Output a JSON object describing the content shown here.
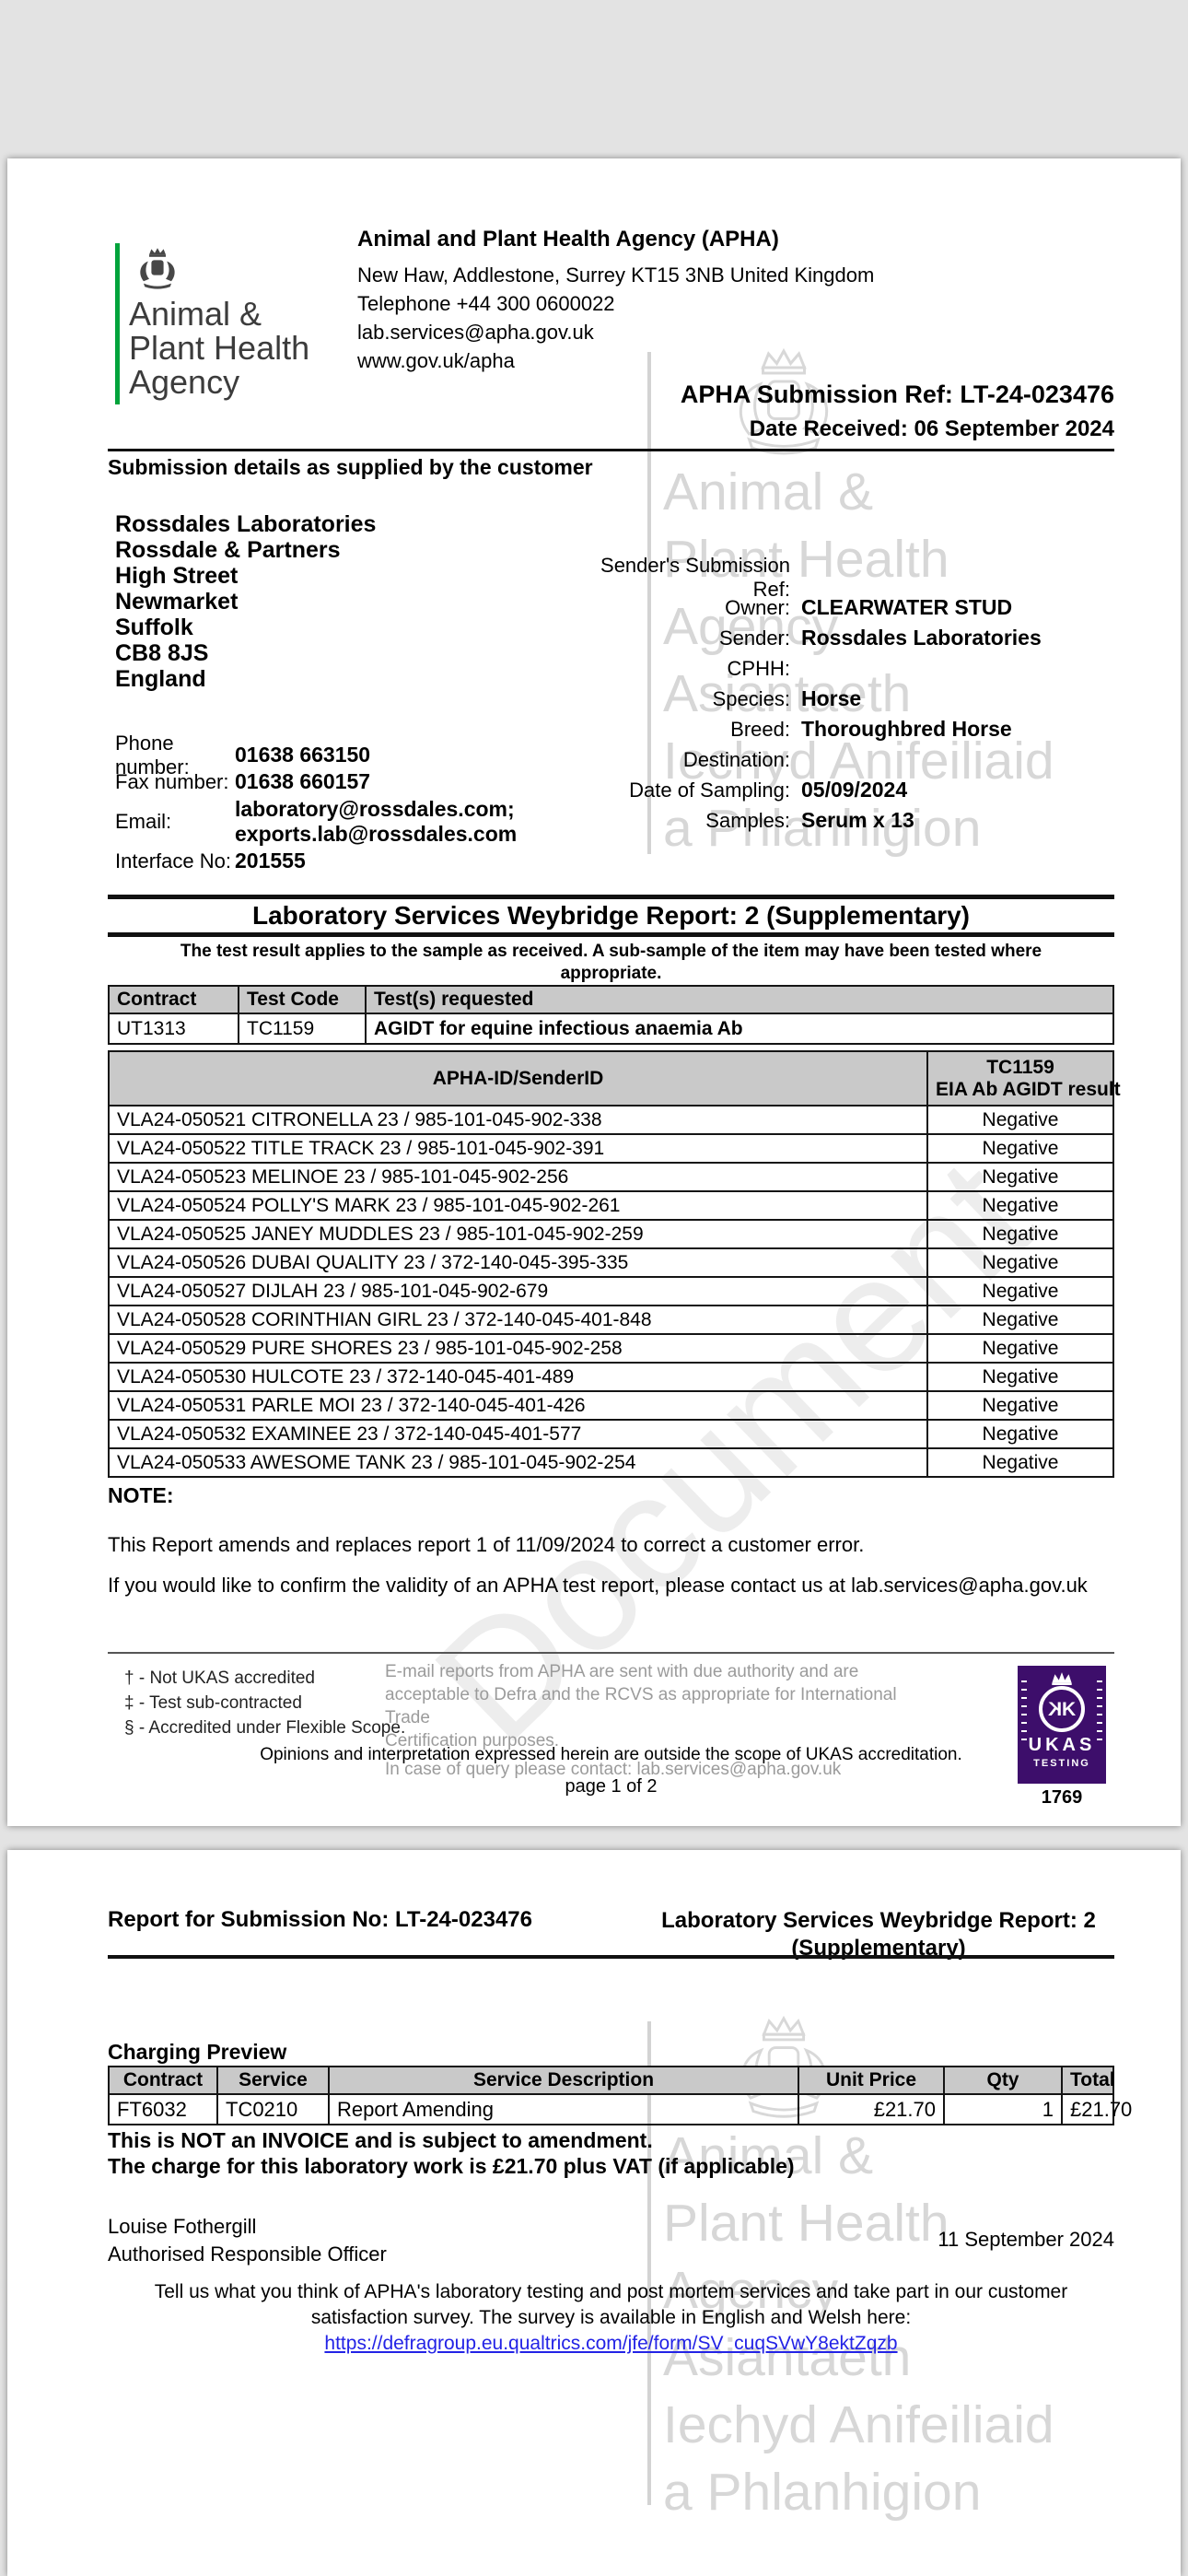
{
  "colors": {
    "accent_green": "#00a33b",
    "ukas_purple": "#3d0e6b",
    "link_blue": "#2323e6",
    "table_header_grey": "#c9c9c9"
  },
  "watermark": {
    "lines": [
      "Animal &",
      "Plant Health",
      "Agency",
      "Asiantaeth",
      "Iechyd Anifeiliaid",
      "a Phlanhigion"
    ],
    "diagonal": "Document"
  },
  "page1": {
    "logo": {
      "lines": [
        "Animal &",
        "Plant Health",
        "Agency"
      ]
    },
    "agency_header": {
      "title": "Animal and Plant Health Agency (APHA)",
      "lines": [
        "New Haw, Addlestone, Surrey KT15 3NB United Kingdom",
        "Telephone +44 300 0600022",
        "lab.services@apha.gov.uk",
        "www.gov.uk/apha"
      ]
    },
    "submission_ref": "APHA Submission Ref: LT-24-023476",
    "date_received": "Date Received: 06 September 2024",
    "section_title": "Submission details as supplied by the customer",
    "customer_address": [
      "Rossdales Laboratories",
      "Rossdale & Partners",
      "High Street",
      "Newmarket",
      "Suffolk",
      "CB8 8JS",
      "England"
    ],
    "contact_rows": [
      {
        "label": "Phone number:",
        "value": "01638 663150"
      },
      {
        "label": "Fax number:",
        "value": "01638 660157"
      },
      {
        "label": "Email:",
        "value": "laboratory@rossdales.com;\nexports.lab@rossdales.com"
      },
      {
        "label": "Interface No:",
        "value": "201555"
      }
    ],
    "details_rows": [
      {
        "label": "Sender's Submission Ref:",
        "value": ""
      },
      {
        "label": "Owner:",
        "value": "CLEARWATER STUD"
      },
      {
        "label": "Sender:",
        "value": "Rossdales Laboratories"
      },
      {
        "label": "CPHH:",
        "value": ""
      },
      {
        "label": "Species:",
        "value": "Horse"
      },
      {
        "label": "Breed:",
        "value": "Thoroughbred Horse"
      },
      {
        "label": "Destination:",
        "value": ""
      },
      {
        "label": "Date of Sampling:",
        "value": "05/09/2024"
      },
      {
        "label": "Samples:",
        "value": "Serum x 13"
      }
    ],
    "report_title": "Laboratory Services Weybridge Report: 2 (Supplementary)",
    "disclaimer": [
      "The test result applies to the sample as received. A sub-sample of the item may have been tested where",
      "appropriate."
    ],
    "tests_table": {
      "headers": [
        "Contract",
        "Test Code",
        "Test(s) requested"
      ],
      "row": [
        "UT1313",
        "TC1159",
        "AGIDT for equine infectious anaemia Ab"
      ]
    },
    "results_table": {
      "col1_header": "APHA-ID/SenderID",
      "col2_header": [
        "TC1159",
        "EIA Ab AGIDT result"
      ],
      "rows": [
        {
          "id": "VLA24-050521 CITRONELLA 23 / 985-101-045-902-338",
          "result": "Negative"
        },
        {
          "id": "VLA24-050522 TITLE TRACK 23 / 985-101-045-902-391",
          "result": "Negative"
        },
        {
          "id": "VLA24-050523 MELINOE 23 / 985-101-045-902-256",
          "result": "Negative"
        },
        {
          "id": "VLA24-050524 POLLY'S MARK 23 / 985-101-045-902-261",
          "result": "Negative"
        },
        {
          "id": "VLA24-050525 JANEY MUDDLES 23 / 985-101-045-902-259",
          "result": "Negative"
        },
        {
          "id": "VLA24-050526 DUBAI QUALITY 23 / 372-140-045-395-335",
          "result": "Negative"
        },
        {
          "id": "VLA24-050527 DIJLAH 23 / 985-101-045-902-679",
          "result": "Negative"
        },
        {
          "id": "VLA24-050528 CORINTHIAN GIRL 23 / 372-140-045-401-848",
          "result": "Negative"
        },
        {
          "id": "VLA24-050529 PURE SHORES 23 / 985-101-045-902-258",
          "result": "Negative"
        },
        {
          "id": "VLA24-050530 HULCOTE 23 / 372-140-045-401-489",
          "result": "Negative"
        },
        {
          "id": "VLA24-050531 PARLE MOI 23 / 372-140-045-401-426",
          "result": "Negative"
        },
        {
          "id": "VLA24-050532 EXAMINEE 23 / 372-140-045-401-577",
          "result": "Negative"
        },
        {
          "id": "VLA24-050533 AWESOME TANK 23 / 985-101-045-902-254",
          "result": "Negative"
        }
      ]
    },
    "note_label": "NOTE:",
    "note_text": "This Report amends and replaces report 1 of 11/09/2024 to correct a customer error.",
    "validity_text": "If you would like to confirm the validity of an APHA test report, please contact us at lab.services@apha.gov.uk",
    "footnotes": [
      "† - Not UKAS accredited",
      "‡ - Test sub-contracted",
      "§ - Accredited under Flexible Scope."
    ],
    "email_notice": [
      "E-mail reports from APHA are sent with due authority and are",
      "acceptable to Defra and the RCVS as appropriate for International Trade",
      "Certification purposes.",
      "In case of query please contact: lab.services@apha.gov.uk"
    ],
    "opinions_text": "Opinions and interpretation expressed herein are outside the scope of UKAS accreditation.",
    "page_label": "page 1 of 2",
    "ukas": {
      "name": "UKAS",
      "category": "TESTING",
      "number": "1769"
    }
  },
  "page2": {
    "report_for": "Report for Submission No: LT-24-023476",
    "header_right": [
      "Laboratory Services Weybridge Report: 2",
      "(Supplementary)"
    ],
    "charging_title": "Charging Preview",
    "charging_table": {
      "headers": [
        "Contract",
        "Service",
        "Service Description",
        "Unit Price",
        "Qty",
        "Total"
      ],
      "row": [
        "FT6032",
        "TC0210",
        "Report Amending",
        "£21.70",
        "1",
        "£21.70"
      ]
    },
    "invoice_note": "This is NOT an INVOICE and is subject to amendment.",
    "charge_note": "The charge for this laboratory work is £21.70 plus VAT (if applicable)",
    "officer_name": "Louise Fothergill",
    "officer_title": "Authorised Responsible Officer",
    "report_date": "11 September 2024",
    "survey_text": [
      "Tell us what you think of APHA's laboratory testing and post mortem services and take part in our customer",
      "satisfaction survey. The survey is available in English and Welsh here:"
    ],
    "survey_link": "https://defragroup.eu.qualtrics.com/jfe/form/SV_cuqSVwY8ektZqzb"
  }
}
